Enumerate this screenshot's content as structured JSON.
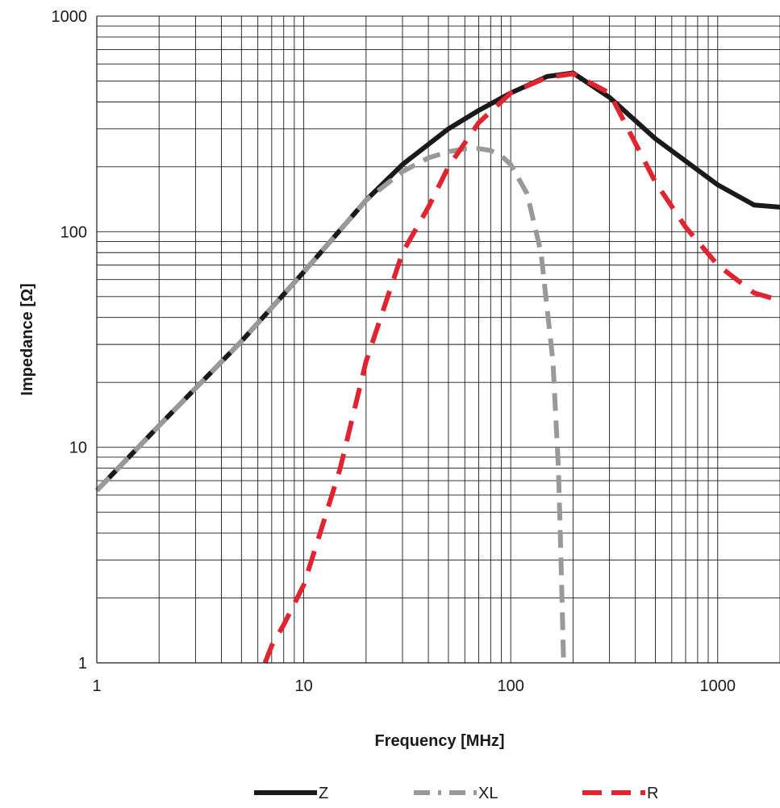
{
  "chart_data": {
    "type": "line",
    "title": "",
    "xlabel": "Frequency [MHz]",
    "ylabel": "Impedance [Ω]",
    "x_scale": "log",
    "y_scale": "log",
    "xlim": [
      1,
      2000
    ],
    "ylim": [
      1,
      1000
    ],
    "x_ticks": [
      1,
      10,
      100,
      1000
    ],
    "x_tick_labels": [
      "1",
      "10",
      "100",
      "1000"
    ],
    "y_ticks": [
      1,
      10,
      100,
      1000
    ],
    "y_tick_labels": [
      "1",
      "10",
      "100",
      "1000"
    ],
    "grid": true,
    "legend_position": "bottom-center",
    "series": [
      {
        "name": "Z",
        "color": "#1a1a1a",
        "style": "solid",
        "x": [
          1,
          2,
          5,
          10,
          20,
          30,
          50,
          70,
          100,
          150,
          200,
          300,
          500,
          1000,
          1500,
          2000
        ],
        "y": [
          6.3,
          12.6,
          31,
          65,
          140,
          205,
          300,
          365,
          440,
          525,
          545,
          420,
          270,
          165,
          133,
          130
        ]
      },
      {
        "name": "XL",
        "color": "#999999",
        "style": "dash-dot",
        "x": [
          1,
          2,
          5,
          10,
          20,
          30,
          40,
          50,
          60,
          70,
          80,
          90,
          100,
          120,
          140,
          160,
          170,
          175,
          180
        ],
        "y": [
          6.3,
          12.6,
          31,
          65,
          140,
          190,
          220,
          235,
          242,
          243,
          238,
          225,
          205,
          150,
          80,
          25,
          8,
          3,
          1
        ]
      },
      {
        "name": "R",
        "color": "#e02430",
        "style": "dash",
        "x": [
          6.5,
          7,
          8,
          10,
          12,
          15,
          20,
          30,
          40,
          50,
          70,
          100,
          150,
          200,
          300,
          500,
          700,
          1000,
          1500,
          2000
        ],
        "y": [
          1,
          1.2,
          1.5,
          2.3,
          4,
          8,
          25,
          80,
          130,
          200,
          320,
          440,
          520,
          540,
          440,
          170,
          105,
          70,
          52,
          48
        ]
      }
    ]
  }
}
